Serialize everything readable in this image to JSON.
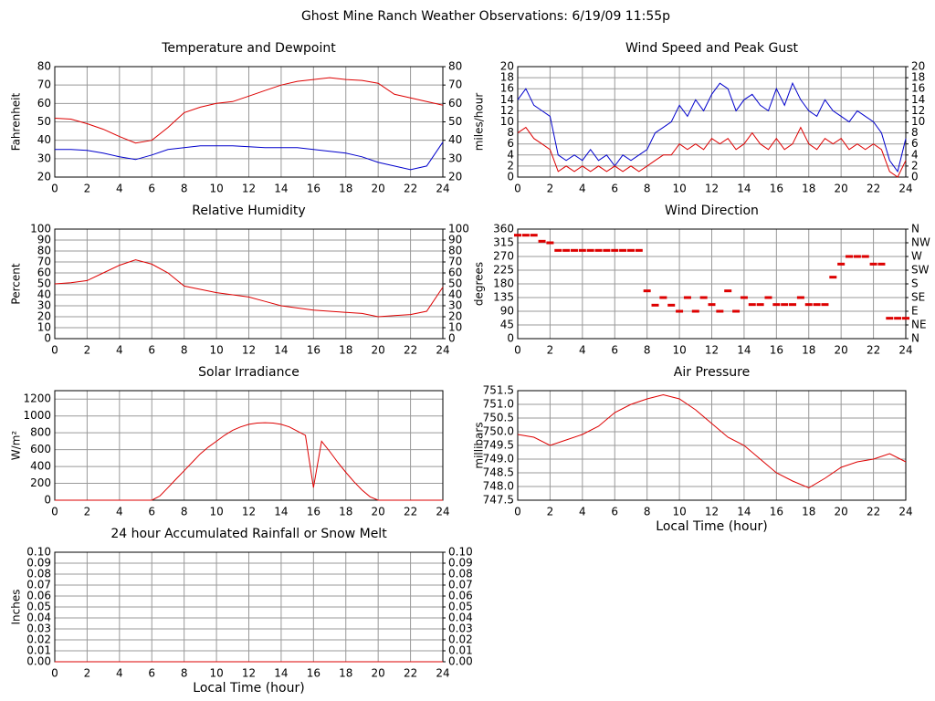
{
  "title": "Ghost Mine Ranch Weather Observations: 6/19/09 11:55p",
  "chart_data": [
    {
      "type": "line",
      "title": "Temperature and Dewpoint",
      "ylabel": "Fahrenheit",
      "grid": true,
      "xlim": [
        0,
        24
      ],
      "xticks": [
        0,
        2,
        4,
        6,
        8,
        10,
        12,
        14,
        16,
        18,
        20,
        22,
        24
      ],
      "ylim": [
        20,
        80
      ],
      "yticks": [
        20,
        30,
        40,
        50,
        60,
        70,
        80
      ],
      "y2lim": [
        20,
        80
      ],
      "y2ticks": [
        20,
        30,
        40,
        50,
        60,
        70,
        80
      ],
      "x": [
        0,
        1,
        2,
        3,
        4,
        5,
        6,
        7,
        8,
        9,
        10,
        11,
        12,
        13,
        14,
        15,
        16,
        17,
        18,
        19,
        20,
        21,
        22,
        23,
        24
      ],
      "series": [
        {
          "color": "#dd0000",
          "values": [
            52,
            51.5,
            49,
            46,
            42,
            38.5,
            40,
            47,
            55,
            58,
            60,
            61,
            64,
            67,
            70,
            72,
            73,
            74,
            73,
            72.5,
            71,
            65,
            63,
            61,
            59
          ]
        },
        {
          "color": "#0000cc",
          "values": [
            35,
            35,
            34.5,
            33,
            31,
            29.5,
            32,
            35,
            36,
            37,
            37,
            37,
            36.5,
            36,
            36,
            36,
            35,
            34,
            33,
            31,
            28,
            26,
            24,
            26,
            39
          ]
        }
      ]
    },
    {
      "type": "line",
      "title": "Wind Speed and Peak Gust",
      "ylabel": "miles/hour",
      "grid": true,
      "xlim": [
        0,
        24
      ],
      "xticks": [
        0,
        2,
        4,
        6,
        8,
        10,
        12,
        14,
        16,
        18,
        20,
        22,
        24
      ],
      "ylim": [
        0,
        20
      ],
      "yticks": [
        0,
        2,
        4,
        6,
        8,
        10,
        12,
        14,
        16,
        18,
        20
      ],
      "y2lim": [
        0,
        20
      ],
      "y2ticks": [
        0,
        2,
        4,
        6,
        8,
        10,
        12,
        14,
        16,
        18,
        20
      ],
      "x": [
        0,
        0.5,
        1,
        1.5,
        2,
        2.5,
        3,
        3.5,
        4,
        4.5,
        5,
        5.5,
        6,
        6.5,
        7,
        7.5,
        8,
        8.5,
        9,
        9.5,
        10,
        10.5,
        11,
        11.5,
        12,
        12.5,
        13,
        13.5,
        14,
        14.5,
        15,
        15.5,
        16,
        16.5,
        17,
        17.5,
        18,
        18.5,
        19,
        19.5,
        20,
        20.5,
        21,
        21.5,
        22,
        22.5,
        23,
        23.5,
        24
      ],
      "series": [
        {
          "color": "#0000cc",
          "values": [
            14,
            16,
            13,
            12,
            11,
            4,
            3,
            4,
            3,
            5,
            3,
            4,
            2,
            4,
            3,
            4,
            5,
            8,
            9,
            10,
            13,
            11,
            14,
            12,
            15,
            17,
            16,
            12,
            14,
            15,
            13,
            12,
            16,
            13,
            17,
            14,
            12,
            11,
            14,
            12,
            11,
            10,
            12,
            11,
            10,
            8,
            3,
            1,
            7
          ]
        },
        {
          "color": "#dd0000",
          "values": [
            8,
            9,
            7,
            6,
            5,
            1,
            2,
            1,
            2,
            1,
            2,
            1,
            2,
            1,
            2,
            1,
            2,
            3,
            4,
            4,
            6,
            5,
            6,
            5,
            7,
            6,
            7,
            5,
            6,
            8,
            6,
            5,
            7,
            5,
            6,
            9,
            6,
            5,
            7,
            6,
            7,
            5,
            6,
            5,
            6,
            5,
            1,
            0,
            3
          ]
        }
      ]
    },
    {
      "type": "line",
      "title": "Relative Humidity",
      "ylabel": "Percent",
      "grid": true,
      "xlim": [
        0,
        24
      ],
      "xticks": [
        0,
        2,
        4,
        6,
        8,
        10,
        12,
        14,
        16,
        18,
        20,
        22,
        24
      ],
      "ylim": [
        0,
        100
      ],
      "yticks": [
        0,
        10,
        20,
        30,
        40,
        50,
        60,
        70,
        80,
        90,
        100
      ],
      "y2lim": [
        0,
        100
      ],
      "y2ticks": [
        0,
        10,
        20,
        30,
        40,
        50,
        60,
        70,
        80,
        90,
        100
      ],
      "x": [
        0,
        1,
        2,
        3,
        4,
        5,
        6,
        7,
        8,
        9,
        10,
        11,
        12,
        13,
        14,
        15,
        16,
        17,
        18,
        19,
        20,
        21,
        22,
        23,
        24
      ],
      "series": [
        {
          "color": "#dd0000",
          "values": [
            50,
            51,
            53,
            60,
            67,
            72,
            68,
            60,
            48,
            45,
            42,
            40,
            38,
            34,
            30,
            28,
            26,
            25,
            24,
            23,
            20,
            21,
            22,
            25,
            47
          ]
        }
      ]
    },
    {
      "type": "scatter",
      "title": "Wind Direction",
      "ylabel": "degrees",
      "grid": true,
      "xlim": [
        0,
        24
      ],
      "xticks": [
        0,
        2,
        4,
        6,
        8,
        10,
        12,
        14,
        16,
        18,
        20,
        22,
        24
      ],
      "ylim": [
        0,
        360
      ],
      "yticks": [
        0,
        45,
        90,
        135,
        180,
        225,
        270,
        315,
        360
      ],
      "y2lim": [
        0,
        360
      ],
      "y2ticks": [
        {
          "value": 0,
          "label": "N"
        },
        {
          "value": 45,
          "label": "NE"
        },
        {
          "value": 90,
          "label": "E"
        },
        {
          "value": 135,
          "label": "SE"
        },
        {
          "value": 180,
          "label": "S"
        },
        {
          "value": 225,
          "label": "SW"
        },
        {
          "value": 270,
          "label": "W"
        },
        {
          "value": 315,
          "label": "NW"
        },
        {
          "value": 360,
          "label": "N"
        }
      ],
      "x": [
        0,
        0.5,
        1,
        1.5,
        2,
        2.5,
        3,
        3.5,
        4,
        4.5,
        5,
        5.5,
        6,
        6.5,
        7,
        7.5,
        8,
        8.5,
        9,
        9.5,
        10,
        10.5,
        11,
        11.5,
        12,
        12.5,
        13,
        13.5,
        14,
        14.5,
        15,
        15.5,
        16,
        16.5,
        17,
        17.5,
        18,
        18.5,
        19,
        19.5,
        20,
        20.5,
        21,
        21.5,
        22,
        22.5,
        23,
        23.5,
        24
      ],
      "series": [
        {
          "color": "#dd0000",
          "values": [
            340,
            340,
            340,
            320,
            315,
            290,
            290,
            290,
            290,
            290,
            290,
            290,
            290,
            290,
            290,
            290,
            157,
            110,
            135,
            110,
            90,
            135,
            90,
            135,
            112,
            90,
            157,
            90,
            135,
            112,
            112,
            135,
            112,
            112,
            112,
            135,
            112,
            112,
            112,
            202,
            245,
            270,
            270,
            270,
            245,
            245,
            67,
            67,
            67
          ]
        }
      ]
    },
    {
      "type": "line",
      "title": "Solar Irradiance",
      "ylabel": "W/m²",
      "grid": true,
      "xlim": [
        0,
        24
      ],
      "xticks": [
        0,
        2,
        4,
        6,
        8,
        10,
        12,
        14,
        16,
        18,
        20,
        22,
        24
      ],
      "ylim": [
        0,
        1300
      ],
      "yticks": [
        0,
        200,
        400,
        600,
        800,
        1000,
        1200
      ],
      "x": [
        0,
        0.5,
        1,
        1.5,
        2,
        2.5,
        3,
        3.5,
        4,
        4.5,
        5,
        5.5,
        6,
        6.5,
        7,
        7.5,
        8,
        8.5,
        9,
        9.5,
        10,
        10.5,
        11,
        11.5,
        12,
        12.5,
        13,
        13.5,
        14,
        14.5,
        15,
        15.5,
        16,
        16.5,
        17,
        17.5,
        18,
        18.5,
        19,
        19.5,
        20,
        20.5,
        21,
        21.5,
        22,
        22.5,
        23,
        23.5,
        24
      ],
      "series": [
        {
          "color": "#dd0000",
          "values": [
            0,
            0,
            0,
            0,
            0,
            0,
            0,
            0,
            0,
            0,
            0,
            0,
            0,
            50,
            150,
            250,
            350,
            450,
            550,
            630,
            700,
            770,
            830,
            870,
            900,
            915,
            920,
            915,
            900,
            870,
            820,
            770,
            150,
            700,
            580,
            450,
            330,
            220,
            120,
            40,
            0,
            0,
            0,
            0,
            0,
            0,
            0,
            0,
            0
          ]
        }
      ]
    },
    {
      "type": "line",
      "title": "Air Pressure",
      "ylabel": "millibars",
      "xlabel": "Local Time (hour)",
      "grid": true,
      "xlim": [
        0,
        24
      ],
      "xticks": [
        0,
        2,
        4,
        6,
        8,
        10,
        12,
        14,
        16,
        18,
        20,
        22,
        24
      ],
      "ylim": [
        747.5,
        751.5
      ],
      "yticks": [
        747.5,
        {
          "value": 748,
          "label": "748.0"
        },
        748.5,
        {
          "value": 749,
          "label": "749.0"
        },
        749.5,
        {
          "value": 750,
          "label": "750.0"
        },
        750.5,
        {
          "value": 751,
          "label": "751.0"
        },
        751.5
      ],
      "x": [
        0,
        1,
        2,
        3,
        4,
        5,
        6,
        7,
        8,
        9,
        10,
        11,
        12,
        13,
        14,
        15,
        16,
        17,
        18,
        19,
        20,
        21,
        22,
        23,
        24
      ],
      "series": [
        {
          "color": "#dd0000",
          "values": [
            749.9,
            749.8,
            749.5,
            749.7,
            749.9,
            750.2,
            750.7,
            751,
            751.2,
            751.35,
            751.2,
            750.8,
            750.3,
            749.8,
            749.5,
            749,
            748.5,
            748.2,
            747.95,
            748.3,
            748.7,
            748.9,
            749,
            749.2,
            748.9
          ]
        }
      ]
    },
    {
      "type": "line",
      "title": "24 hour Accumulated Rainfall or Snow Melt",
      "ylabel": "Inches",
      "xlabel": "Local Time (hour)",
      "grid": true,
      "xlim": [
        0,
        24
      ],
      "xticks": [
        0,
        2,
        4,
        6,
        8,
        10,
        12,
        14,
        16,
        18,
        20,
        22,
        24
      ],
      "ylim": [
        0,
        0.1
      ],
      "yticks": [
        {
          "value": 0,
          "label": "0.00"
        },
        {
          "value": 0.01,
          "label": "0.01"
        },
        {
          "value": 0.02,
          "label": "0.02"
        },
        {
          "value": 0.03,
          "label": "0.03"
        },
        {
          "value": 0.04,
          "label": "0.04"
        },
        {
          "value": 0.05,
          "label": "0.05"
        },
        {
          "value": 0.06,
          "label": "0.06"
        },
        {
          "value": 0.07,
          "label": "0.07"
        },
        {
          "value": 0.08,
          "label": "0.08"
        },
        {
          "value": 0.09,
          "label": "0.09"
        },
        {
          "value": 0.1,
          "label": "0.10"
        }
      ],
      "y2lim": [
        0,
        0.1
      ],
      "y2ticks": [
        {
          "value": 0,
          "label": "0.00"
        },
        {
          "value": 0.01,
          "label": "0.01"
        },
        {
          "value": 0.02,
          "label": "0.02"
        },
        {
          "value": 0.03,
          "label": "0.03"
        },
        {
          "value": 0.04,
          "label": "0.04"
        },
        {
          "value": 0.05,
          "label": "0.05"
        },
        {
          "value": 0.06,
          "label": "0.06"
        },
        {
          "value": 0.07,
          "label": "0.07"
        },
        {
          "value": 0.08,
          "label": "0.08"
        },
        {
          "value": 0.09,
          "label": "0.09"
        },
        {
          "value": 0.1,
          "label": "0.10"
        }
      ],
      "x": [
        0,
        1,
        2,
        3,
        4,
        5,
        6,
        7,
        8,
        9,
        10,
        11,
        12,
        13,
        14,
        15,
        16,
        17,
        18,
        19,
        20,
        21,
        22,
        23,
        24
      ],
      "series": [
        {
          "color": "#dd0000",
          "values": [
            0,
            0,
            0,
            0,
            0,
            0,
            0,
            0,
            0,
            0,
            0,
            0,
            0,
            0,
            0,
            0,
            0,
            0,
            0,
            0,
            0,
            0,
            0,
            0,
            0
          ]
        }
      ]
    }
  ]
}
